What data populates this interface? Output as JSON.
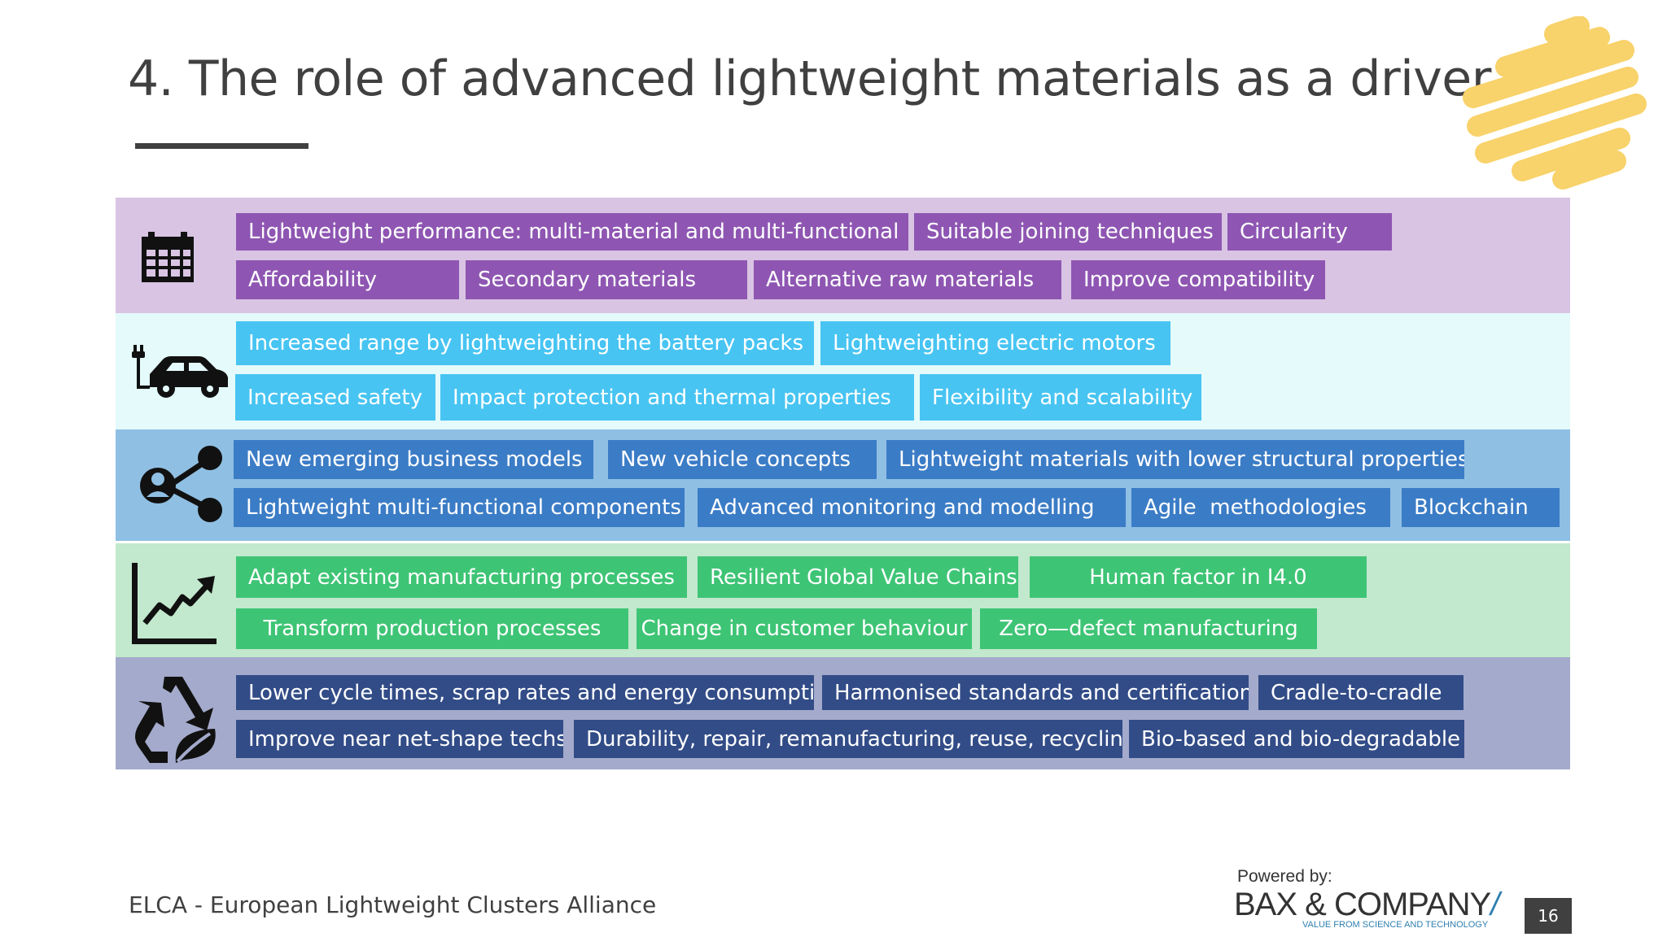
{
  "title": "4. The role of advanced lightweight materials as a driver",
  "colors": {
    "band1_bg": "#d9c4e3",
    "band1_chip": "#8e56b2",
    "band2_bg": "#e4fafb",
    "band2_chip": "#47c4f2",
    "band3_bg": "#8fbfe3",
    "band3_chip": "#3b7cc6",
    "band4_bg": "#c2e8cd",
    "band4_chip": "#3ec475",
    "band5_bg": "#a4aacb",
    "band5_chip": "#324c87",
    "logo_yellow": "#f8d26a"
  },
  "bands": [
    {
      "icon": "calendar-icon",
      "row1": [
        "Lightweight performance: multi-material and multi-functional",
        "Suitable joining techniques",
        "Circularity"
      ],
      "row2": [
        "Affordability",
        "Secondary materials",
        "Alternative raw materials",
        "Improve compatibility"
      ]
    },
    {
      "icon": "electric-car-icon",
      "row1": [
        "Increased range by lightweighting the battery packs",
        "Lightweighting electric motors"
      ],
      "row2": [
        "Increased safety",
        "Impact protection and thermal properties",
        "Flexibility and scalability"
      ]
    },
    {
      "icon": "share-network-icon",
      "row1": [
        "New emerging business models",
        "New vehicle concepts",
        "Lightweight materials with lower structural properties"
      ],
      "row2": [
        "Lightweight multi-functional components",
        "Advanced monitoring and modelling",
        "Agile  methodologies",
        "Blockchain"
      ]
    },
    {
      "icon": "growth-chart-icon",
      "row1": [
        "Adapt existing manufacturing processes",
        "Resilient Global Value Chains",
        "Human factor in I4.0"
      ],
      "row2": [
        "Transform production processes",
        "Change in customer behaviour",
        "Zero—defect manufacturing"
      ]
    },
    {
      "icon": "recycle-leaf-icon",
      "row1": [
        "Lower cycle times, scrap rates and energy consumption",
        "Harmonised standards and certification",
        "Cradle-to-cradle"
      ],
      "row2": [
        "Improve near net-shape techs",
        "Durability, repair, remanufacturing, reuse, recycling",
        "Bio-based and bio-degradable"
      ]
    }
  ],
  "footer": {
    "org": "ELCA - European Lightweight Clusters Alliance",
    "powered_by": "Powered by:",
    "brand": "BAX & COMPANY",
    "brand_slash": "/",
    "tagline": "VALUE FROM SCIENCE AND TECHNOLOGY",
    "page_number": "16"
  }
}
